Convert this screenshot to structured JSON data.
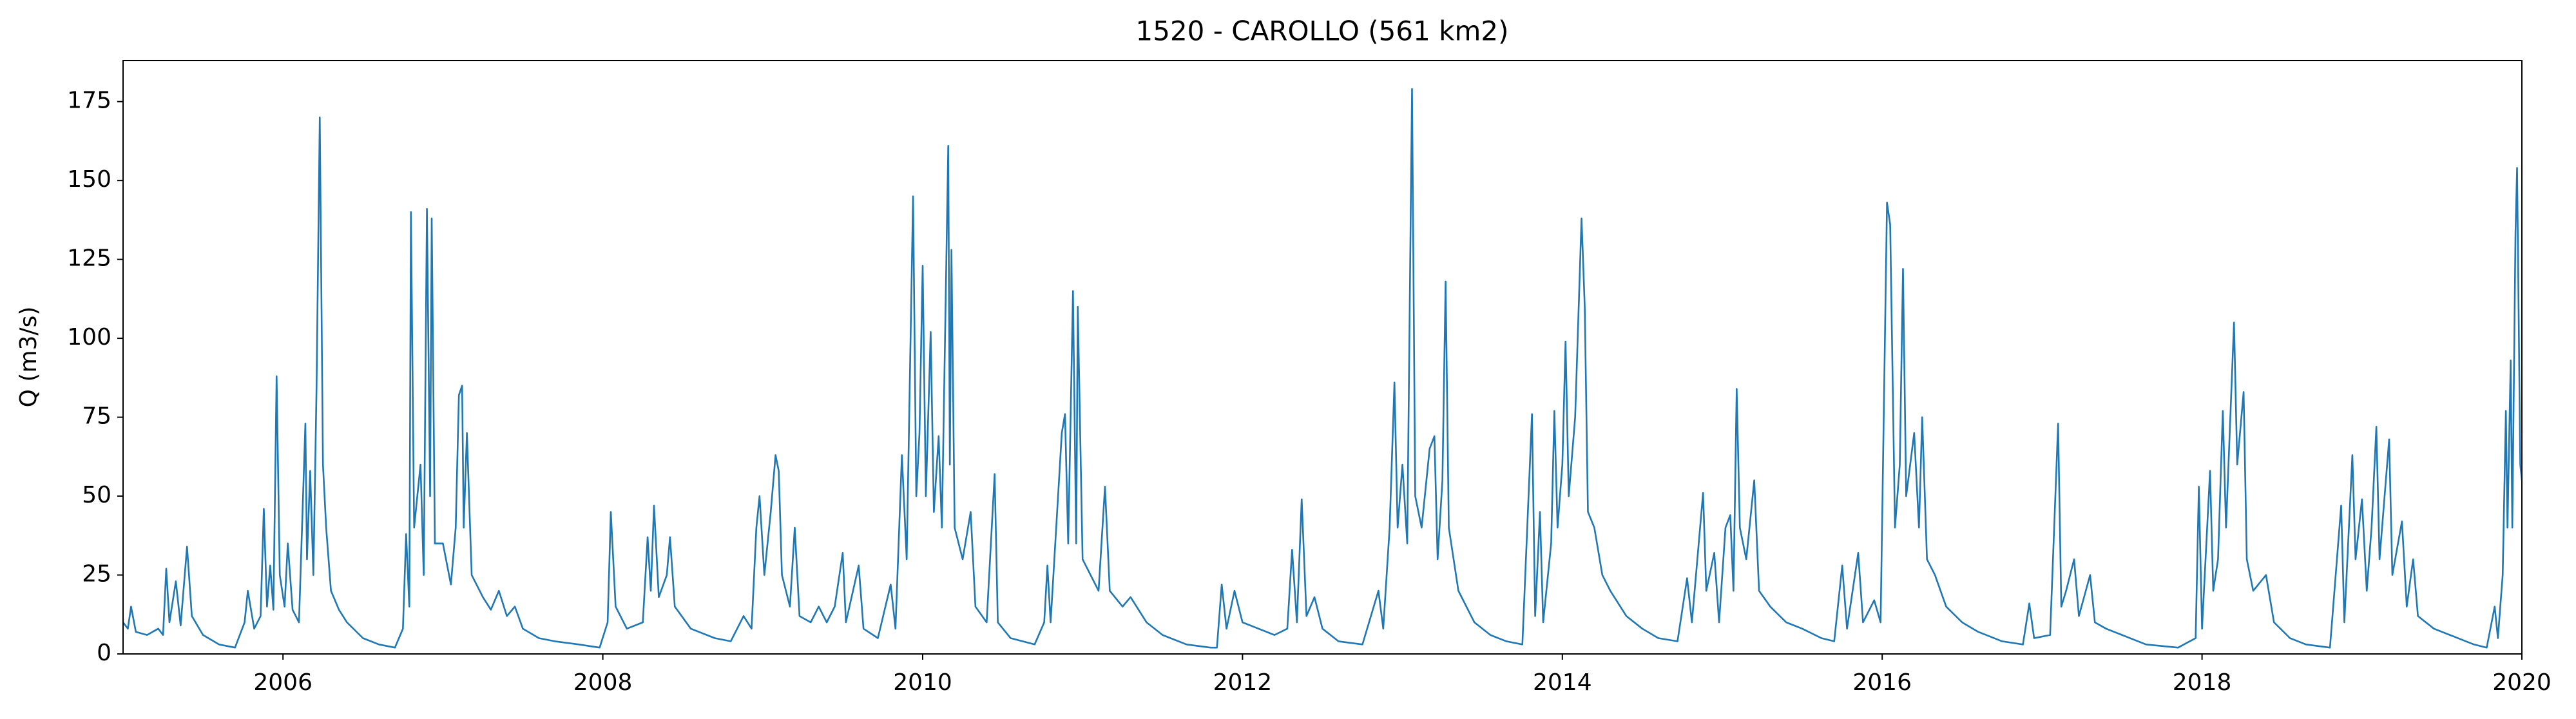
{
  "chart_data": {
    "type": "line",
    "title": "1520 - CAROLLO (561 km2)",
    "y_label": "Q (m3/s)",
    "color": "#1f77b4",
    "xlim": [
      2005,
      2020
    ],
    "xticks": [
      2006,
      2008,
      2010,
      2012,
      2014,
      2016,
      2018,
      2020
    ],
    "ylim": [
      0,
      188
    ],
    "yticks": [
      0,
      25,
      50,
      75,
      100,
      125,
      150,
      175
    ],
    "grid": false,
    "x": [
      2005.0,
      2005.03,
      2005.05,
      2005.08,
      2005.15,
      2005.22,
      2005.25,
      2005.27,
      2005.29,
      2005.33,
      2005.36,
      2005.4,
      2005.43,
      2005.5,
      2005.6,
      2005.7,
      2005.76,
      2005.78,
      2005.82,
      2005.86,
      2005.88,
      2005.9,
      2005.92,
      2005.94,
      2005.96,
      2005.98,
      2006.01,
      2006.03,
      2006.06,
      2006.1,
      2006.14,
      2006.15,
      2006.17,
      2006.19,
      2006.21,
      2006.23,
      2006.25,
      2006.27,
      2006.3,
      2006.35,
      2006.4,
      2006.5,
      2006.6,
      2006.7,
      2006.75,
      2006.77,
      2006.79,
      2006.8,
      2006.82,
      2006.86,
      2006.88,
      2006.9,
      2006.92,
      2006.93,
      2006.95,
      2007.0,
      2007.05,
      2007.08,
      2007.1,
      2007.12,
      2007.13,
      2007.15,
      2007.18,
      2007.25,
      2007.3,
      2007.35,
      2007.4,
      2007.45,
      2007.5,
      2007.6,
      2007.7,
      2007.85,
      2007.98,
      2008.03,
      2008.05,
      2008.08,
      2008.15,
      2008.25,
      2008.28,
      2008.3,
      2008.32,
      2008.35,
      2008.4,
      2008.42,
      2008.45,
      2008.55,
      2008.7,
      2008.8,
      2008.88,
      2008.93,
      2008.96,
      2008.98,
      2009.01,
      2009.05,
      2009.08,
      2009.1,
      2009.12,
      2009.17,
      2009.2,
      2009.23,
      2009.3,
      2009.35,
      2009.4,
      2009.45,
      2009.5,
      2009.52,
      2009.6,
      2009.63,
      2009.72,
      2009.8,
      2009.83,
      2009.87,
      2009.9,
      2009.94,
      2009.96,
      2009.98,
      2010.0,
      2010.02,
      2010.05,
      2010.07,
      2010.1,
      2010.12,
      2010.16,
      2010.17,
      2010.18,
      2010.2,
      2010.25,
      2010.3,
      2010.33,
      2010.4,
      2010.45,
      2010.47,
      2010.55,
      2010.7,
      2010.76,
      2010.78,
      2010.8,
      2010.87,
      2010.89,
      2010.91,
      2010.94,
      2010.96,
      2010.97,
      2011.0,
      2011.05,
      2011.1,
      2011.14,
      2011.17,
      2011.25,
      2011.3,
      2011.4,
      2011.5,
      2011.65,
      2011.8,
      2011.84,
      2011.87,
      2011.9,
      2011.95,
      2012.0,
      2012.1,
      2012.2,
      2012.28,
      2012.31,
      2012.34,
      2012.37,
      2012.4,
      2012.45,
      2012.5,
      2012.6,
      2012.75,
      2012.85,
      2012.88,
      2012.92,
      2012.95,
      2012.97,
      2013.0,
      2013.03,
      2013.06,
      2013.08,
      2013.12,
      2013.17,
      2013.2,
      2013.22,
      2013.25,
      2013.27,
      2013.29,
      2013.35,
      2013.45,
      2013.55,
      2013.65,
      2013.75,
      2013.81,
      2013.83,
      2013.86,
      2013.88,
      2013.93,
      2013.95,
      2013.97,
      2014.0,
      2014.02,
      2014.04,
      2014.08,
      2014.12,
      2014.14,
      2014.16,
      2014.2,
      2014.25,
      2014.3,
      2014.4,
      2014.5,
      2014.6,
      2014.72,
      2014.78,
      2014.81,
      2014.88,
      2014.9,
      2014.95,
      2014.98,
      2015.02,
      2015.05,
      2015.07,
      2015.09,
      2015.11,
      2015.15,
      2015.2,
      2015.23,
      2015.3,
      2015.4,
      2015.5,
      2015.62,
      2015.7,
      2015.75,
      2015.78,
      2015.85,
      2015.88,
      2015.95,
      2015.99,
      2016.03,
      2016.05,
      2016.08,
      2016.11,
      2016.13,
      2016.15,
      2016.2,
      2016.23,
      2016.25,
      2016.28,
      2016.33,
      2016.4,
      2016.5,
      2016.6,
      2016.75,
      2016.88,
      2016.92,
      2016.95,
      2017.05,
      2017.1,
      2017.12,
      2017.15,
      2017.2,
      2017.23,
      2017.3,
      2017.33,
      2017.4,
      2017.5,
      2017.65,
      2017.85,
      2017.96,
      2017.98,
      2018.0,
      2018.05,
      2018.07,
      2018.1,
      2018.13,
      2018.15,
      2018.2,
      2018.22,
      2018.26,
      2018.28,
      2018.32,
      2018.4,
      2018.45,
      2018.55,
      2018.65,
      2018.8,
      2018.87,
      2018.89,
      2018.94,
      2018.96,
      2019.0,
      2019.03,
      2019.06,
      2019.09,
      2019.11,
      2019.17,
      2019.19,
      2019.25,
      2019.28,
      2019.32,
      2019.35,
      2019.45,
      2019.55,
      2019.7,
      2019.78,
      2019.83,
      2019.85,
      2019.88,
      2019.9,
      2019.91,
      2019.93,
      2019.94,
      2019.96,
      2019.97,
      2019.99,
      2020.0
    ],
    "values": [
      10,
      8,
      15,
      7,
      6,
      8,
      6,
      27,
      10,
      23,
      9,
      34,
      12,
      6,
      3,
      2,
      10,
      20,
      8,
      12,
      46,
      15,
      28,
      14,
      88,
      25,
      15,
      35,
      14,
      10,
      73,
      30,
      58,
      25,
      85,
      170,
      60,
      40,
      20,
      14,
      10,
      5,
      3,
      2,
      8,
      38,
      15,
      140,
      40,
      60,
      25,
      141,
      50,
      138,
      35,
      35,
      22,
      40,
      82,
      85,
      40,
      70,
      25,
      18,
      14,
      20,
      12,
      15,
      8,
      5,
      4,
      3,
      2,
      10,
      45,
      15,
      8,
      10,
      37,
      20,
      47,
      18,
      25,
      37,
      15,
      8,
      5,
      4,
      12,
      8,
      40,
      50,
      25,
      45,
      63,
      58,
      25,
      15,
      40,
      12,
      10,
      15,
      10,
      15,
      32,
      10,
      28,
      8,
      5,
      22,
      8,
      63,
      30,
      145,
      50,
      70,
      123,
      50,
      102,
      45,
      69,
      40,
      161,
      60,
      128,
      40,
      30,
      45,
      15,
      10,
      57,
      10,
      5,
      3,
      10,
      28,
      10,
      70,
      76,
      35,
      115,
      35,
      110,
      30,
      25,
      20,
      53,
      20,
      15,
      18,
      10,
      6,
      3,
      2,
      2,
      22,
      8,
      20,
      10,
      8,
      6,
      8,
      33,
      10,
      49,
      12,
      18,
      8,
      4,
      3,
      20,
      8,
      40,
      86,
      40,
      60,
      35,
      179,
      50,
      40,
      65,
      69,
      30,
      55,
      118,
      40,
      20,
      10,
      6,
      4,
      3,
      76,
      12,
      45,
      10,
      35,
      77,
      40,
      60,
      99,
      50,
      75,
      138,
      110,
      45,
      40,
      25,
      20,
      12,
      8,
      5,
      4,
      24,
      10,
      51,
      20,
      32,
      10,
      40,
      44,
      20,
      84,
      40,
      30,
      55,
      20,
      15,
      10,
      8,
      5,
      4,
      28,
      8,
      32,
      10,
      17,
      10,
      143,
      136,
      40,
      60,
      122,
      50,
      70,
      40,
      75,
      30,
      25,
      15,
      10,
      7,
      4,
      3,
      16,
      5,
      6,
      73,
      15,
      20,
      30,
      12,
      25,
      10,
      8,
      6,
      3,
      2,
      5,
      53,
      8,
      58,
      20,
      30,
      77,
      40,
      105,
      60,
      83,
      30,
      20,
      25,
      10,
      5,
      3,
      2,
      47,
      10,
      63,
      30,
      49,
      20,
      40,
      72,
      30,
      68,
      25,
      42,
      15,
      30,
      12,
      8,
      6,
      3,
      2,
      15,
      5,
      25,
      77,
      40,
      93,
      40,
      133,
      154,
      60,
      55
    ]
  }
}
